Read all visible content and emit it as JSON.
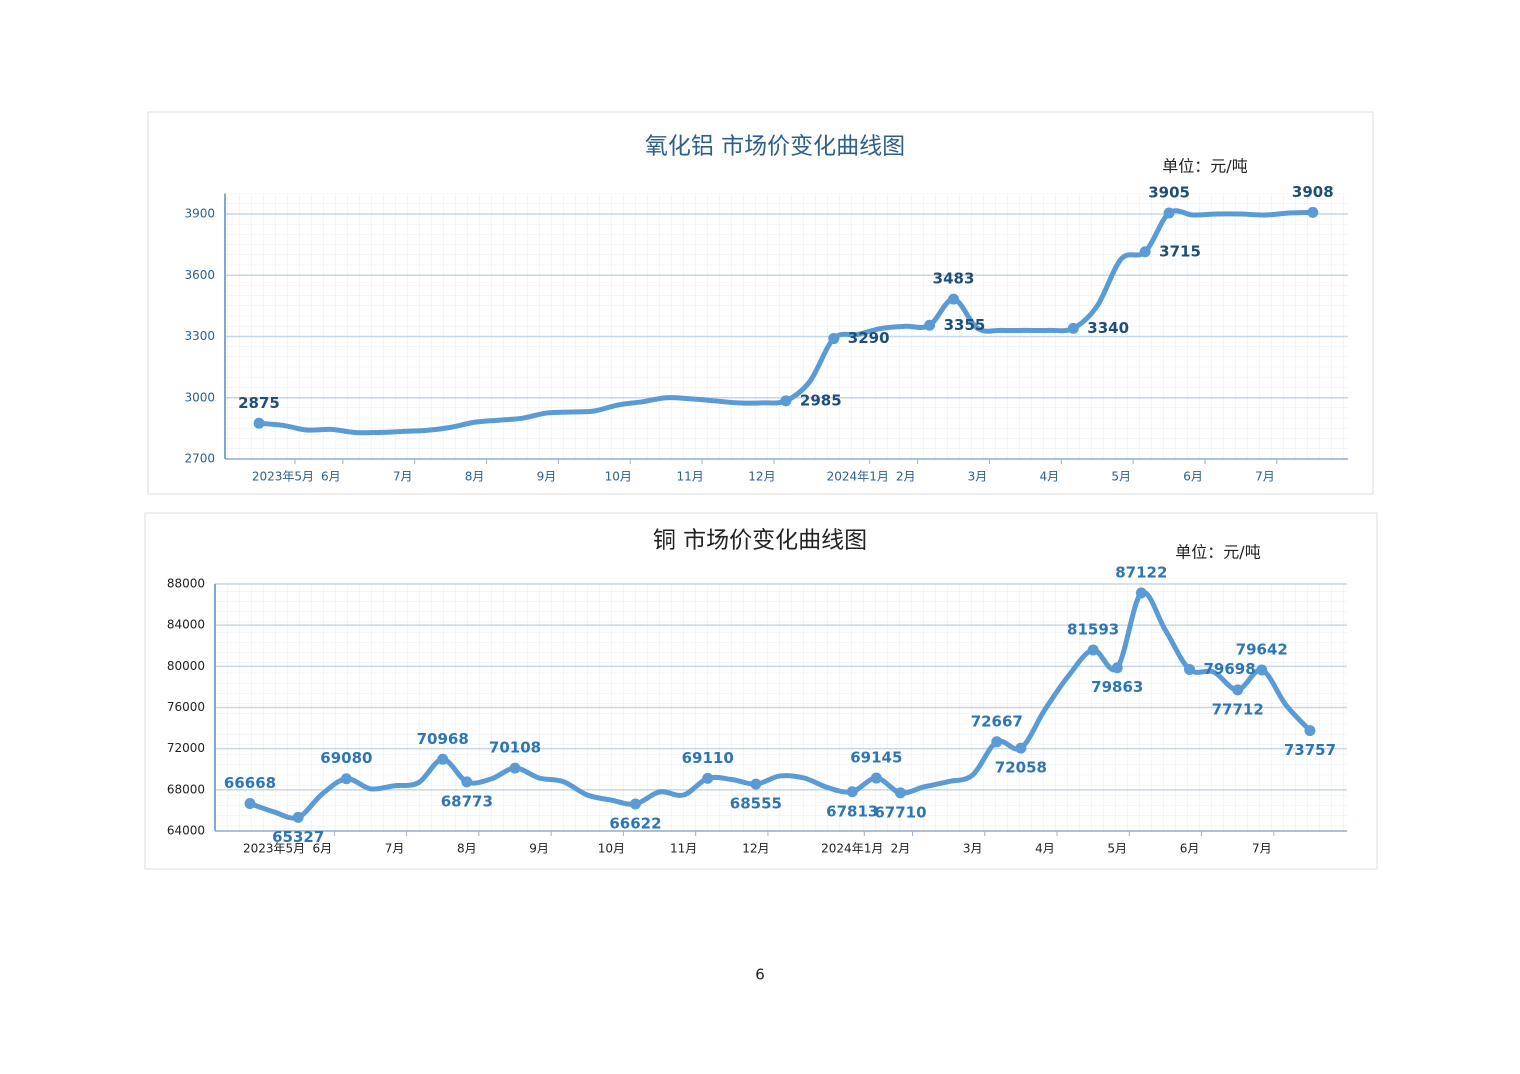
{
  "chart_data": [
    {
      "type": "line",
      "title": "氧化铝  市场价变化曲线图",
      "unit": "单位：元/吨",
      "color": "#5b9bd5",
      "categories": [
        null,
        "2023年5月",
        null,
        "6月",
        null,
        null,
        "7月",
        null,
        null,
        "8月",
        null,
        null,
        "9月",
        null,
        null,
        "10月",
        null,
        null,
        "11月",
        null,
        null,
        "12月",
        null,
        null,
        null,
        "2024年1月",
        null,
        "2月",
        null,
        null,
        "3月",
        null,
        null,
        "4月",
        null,
        null,
        "5月",
        null,
        null,
        "6月",
        null,
        null,
        "7月",
        null,
        null
      ],
      "values": [
        2875,
        2865,
        2842,
        2845,
        2830,
        2830,
        2835,
        2840,
        2855,
        2880,
        2890,
        2900,
        2925,
        2930,
        2935,
        2965,
        2980,
        3000,
        2995,
        2985,
        2975,
        2975,
        2985,
        3080,
        3290,
        3310,
        3340,
        3350,
        3355,
        3483,
        3340,
        3330,
        3330,
        3330,
        3340,
        3450,
        3680,
        3715,
        3905,
        3895,
        3900,
        3900,
        3895,
        3905,
        3908
      ],
      "value_labels": [
        "2875",
        null,
        null,
        null,
        null,
        null,
        null,
        null,
        null,
        null,
        null,
        null,
        null,
        null,
        null,
        null,
        null,
        null,
        null,
        null,
        null,
        null,
        "2985",
        null,
        "3290",
        null,
        null,
        null,
        "3355",
        "3483",
        null,
        null,
        null,
        null,
        "3340",
        null,
        null,
        "3715",
        "3905",
        null,
        null,
        null,
        null,
        null,
        "3908"
      ],
      "ylim": [
        2700,
        4000
      ],
      "yticks": [
        2700,
        3000,
        3300,
        3600,
        3900
      ],
      "grid": true
    },
    {
      "type": "line",
      "title": "铜  市场价变化曲线图",
      "unit": "单位：元/吨",
      "color": "#5b9bd5",
      "categories": [
        null,
        "2023年5月",
        null,
        "6月",
        null,
        null,
        "7月",
        null,
        null,
        "8月",
        null,
        null,
        "9月",
        null,
        null,
        "10月",
        null,
        null,
        "11月",
        null,
        null,
        "12月",
        null,
        null,
        null,
        "2024年1月",
        null,
        "2月",
        null,
        null,
        "3月",
        null,
        null,
        "4月",
        null,
        null,
        "5月",
        null,
        null,
        "6月",
        null,
        null,
        "7月",
        null,
        null
      ],
      "values": [
        66668,
        65850,
        65327,
        67600,
        69080,
        68100,
        68400,
        68700,
        70968,
        68773,
        69050,
        70108,
        69150,
        68800,
        67500,
        67000,
        66622,
        67800,
        67500,
        69110,
        69000,
        68555,
        69350,
        69150,
        68200,
        67813,
        69145,
        67710,
        68300,
        68800,
        69450,
        72667,
        72058,
        75800,
        79150,
        81593,
        79863,
        87122,
        83500,
        79698,
        79450,
        77712,
        79642,
        76250,
        73757
      ],
      "value_labels": [
        "66668",
        null,
        "65327",
        null,
        "69080",
        null,
        null,
        null,
        "70968",
        "68773",
        null,
        "70108",
        null,
        null,
        null,
        null,
        "66622",
        null,
        null,
        "69110",
        null,
        "68555",
        null,
        null,
        null,
        "67813",
        "69145",
        "67710",
        null,
        null,
        null,
        "72667",
        "72058",
        null,
        null,
        "81593",
        "79863",
        "87122",
        null,
        "79698",
        null,
        "77712",
        "79642",
        null,
        "73757"
      ],
      "ylim": [
        64000,
        88000
      ],
      "yticks": [
        64000,
        68000,
        72000,
        76000,
        80000,
        84000,
        88000
      ],
      "grid": true
    }
  ],
  "page_number": "6"
}
